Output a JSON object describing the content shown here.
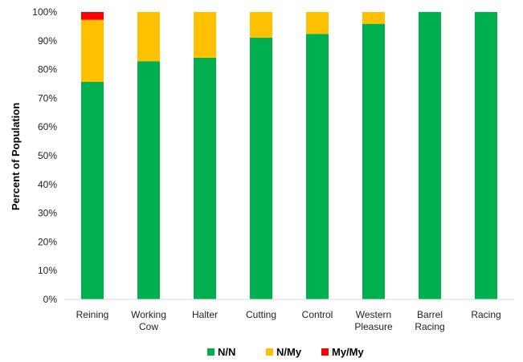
{
  "chart_data": {
    "type": "bar",
    "stacked": true,
    "categories": [
      [
        "Reining"
      ],
      [
        "Working",
        "Cow"
      ],
      [
        "Halter"
      ],
      [
        "Cutting"
      ],
      [
        "Control"
      ],
      [
        "Western",
        "Pleasure"
      ],
      [
        "Barrel",
        "Racing"
      ],
      [
        "Racing"
      ]
    ],
    "series": [
      {
        "name": "N/N",
        "color": "#00b050",
        "values": [
          75.7,
          82.9,
          84.1,
          91.1,
          92.4,
          95.9,
          100,
          100
        ]
      },
      {
        "name": "N/My",
        "color": "#ffc000",
        "values": [
          21.6,
          17.1,
          15.9,
          8.9,
          7.6,
          4.1,
          0,
          0
        ]
      },
      {
        "name": "My/My",
        "color": "#ff0000",
        "values": [
          2.7,
          0,
          0,
          0,
          0,
          0,
          0,
          0
        ]
      }
    ],
    "ylabel": "Percent of Population",
    "ylim": [
      0,
      100
    ],
    "yticks": [
      "0%",
      "10%",
      "20%",
      "30%",
      "40%",
      "50%",
      "60%",
      "70%",
      "80%",
      "90%",
      "100%"
    ],
    "grid": false,
    "legend_position": "bottom"
  }
}
